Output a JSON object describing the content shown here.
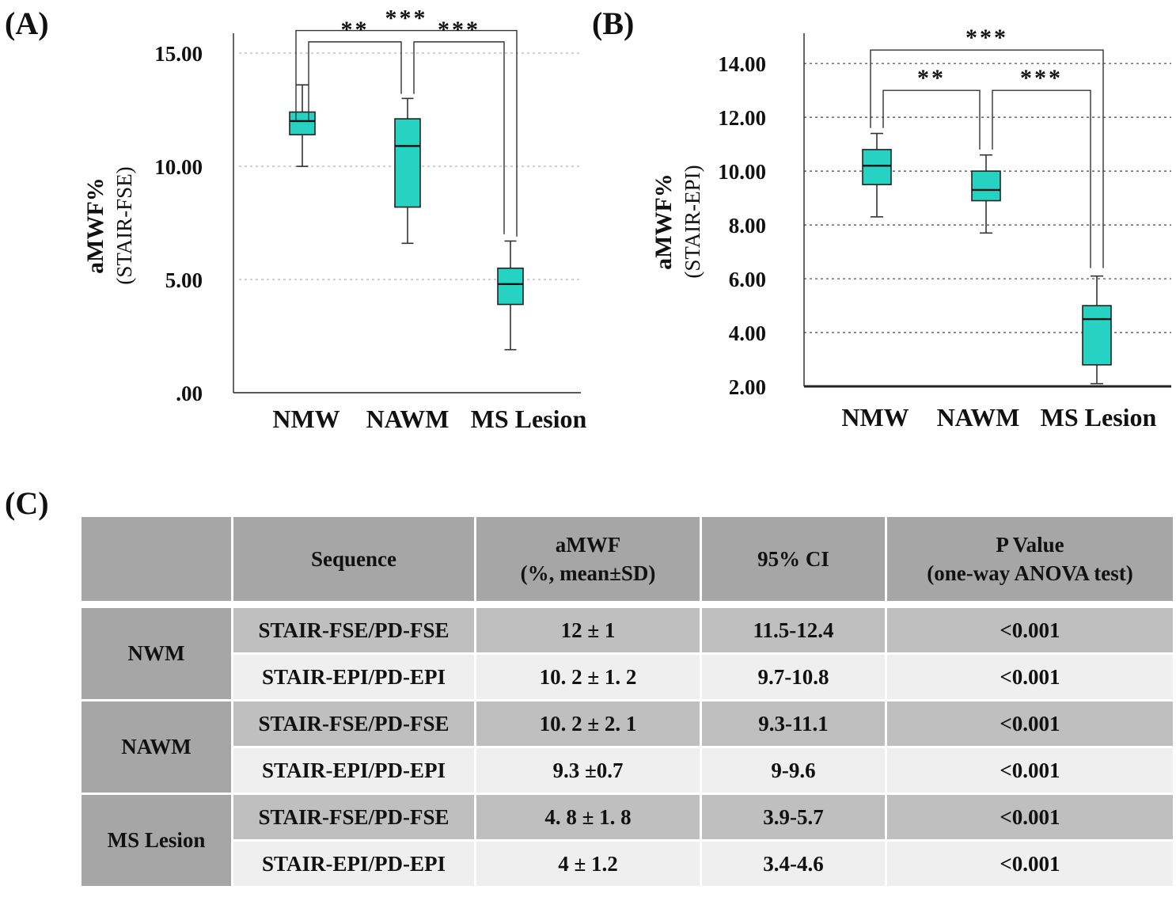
{
  "panels": {
    "a": "(A)",
    "b": "(B)",
    "c": "(C)"
  },
  "colors": {
    "box_fill": "#26d3c3",
    "grid": "#cfcfcf",
    "header_bg": "#a6a6a6",
    "row_dark": "#bfbfbf",
    "row_light": "#efefef"
  },
  "chart_data": [
    {
      "type": "box",
      "panel": "(A)",
      "ylabel": "aMWF%",
      "ylabel_sub": "(STAIR-FSE)",
      "categories": [
        "NMW",
        "NAWM",
        "MS Lesion"
      ],
      "yticks": [
        ".00",
        "5.00",
        "10.00",
        "15.00"
      ],
      "ytick_values": [
        0,
        5,
        10,
        15
      ],
      "ylim": [
        0,
        16.3
      ],
      "grid": "dotted horizontal at 5, 10, 15",
      "boxes": [
        {
          "category": "NMW",
          "min": 10.0,
          "q1": 11.4,
          "median": 12.0,
          "q3": 12.4,
          "max": 13.6
        },
        {
          "category": "NAWM",
          "min": 6.6,
          "q1": 8.2,
          "median": 10.9,
          "q3": 12.1,
          "max": 13.0
        },
        {
          "category": "MS Lesion",
          "min": 1.9,
          "q1": 3.9,
          "median": 4.8,
          "q3": 5.5,
          "max": 6.7
        }
      ],
      "comparisons": [
        {
          "from": "NMW",
          "to": "MS Lesion",
          "label": "***",
          "y": 16.0,
          "drop_from": 12.0,
          "drop_to": 6.9
        },
        {
          "from": "NMW",
          "to": "NAWM",
          "label": "**",
          "y": 15.5,
          "drop_from": 12.0,
          "drop_to": 13.2
        },
        {
          "from": "NAWM",
          "to": "MS Lesion",
          "label": "***",
          "y": 15.5,
          "drop_from": 13.2,
          "drop_to": 7.0
        }
      ]
    },
    {
      "type": "box",
      "panel": "(B)",
      "ylabel": "aMWF%",
      "ylabel_sub": "(STAIR-EPI)",
      "categories": [
        "NMW",
        "NAWM",
        "MS Lesion"
      ],
      "yticks": [
        "2.00",
        "4.00",
        "6.00",
        "8.00",
        "10.00",
        "12.00",
        "14.00"
      ],
      "ytick_values": [
        2,
        4,
        6,
        8,
        10,
        12,
        14
      ],
      "ylim": [
        2,
        15.3
      ],
      "grid": "dotted horizontal at 4 to 14",
      "boxes": [
        {
          "category": "NMW",
          "min": 8.3,
          "q1": 9.5,
          "median": 10.2,
          "q3": 10.8,
          "max": 11.4
        },
        {
          "category": "NAWM",
          "min": 7.7,
          "q1": 8.9,
          "median": 9.3,
          "q3": 10.0,
          "max": 10.6
        },
        {
          "category": "MS Lesion",
          "min": 2.1,
          "q1": 2.8,
          "median": 4.5,
          "q3": 5.0,
          "max": 6.1
        }
      ],
      "comparisons": [
        {
          "from": "NMW",
          "to": "MS Lesion",
          "label": "***",
          "y": 14.5,
          "drop_from": 11.6,
          "drop_to": 6.4
        },
        {
          "from": "NMW",
          "to": "NAWM",
          "label": "**",
          "y": 13.0,
          "drop_from": 11.6,
          "drop_to": 10.8
        },
        {
          "from": "NAWM",
          "to": "MS Lesion",
          "label": "***",
          "y": 13.0,
          "drop_from": 10.8,
          "drop_to": 6.4
        }
      ]
    }
  ],
  "table": {
    "headers": [
      "",
      "Sequence",
      "aMWF\n(%, mean±SD)",
      "95% CI",
      "P Value\n(one-way ANOVA test)"
    ],
    "groups": [
      {
        "name": "NWM",
        "rows": [
          {
            "sequence": "STAIR-FSE/PD-FSE",
            "amwf": "12 ± 1",
            "ci": "11.5-12.4",
            "p": "<0.001"
          },
          {
            "sequence": "STAIR-EPI/PD-EPI",
            "amwf": "10. 2 ± 1. 2",
            "ci": "9.7-10.8",
            "p": "<0.001"
          }
        ]
      },
      {
        "name": "NAWM",
        "rows": [
          {
            "sequence": "STAIR-FSE/PD-FSE",
            "amwf": "10. 2 ± 2. 1",
            "ci": "9.3-11.1",
            "p": "<0.001"
          },
          {
            "sequence": "STAIR-EPI/PD-EPI",
            "amwf": "9.3 ±0.7",
            "ci": "9-9.6",
            "p": "<0.001"
          }
        ]
      },
      {
        "name": "MS Lesion",
        "rows": [
          {
            "sequence": "STAIR-FSE/PD-FSE",
            "amwf": "4. 8 ± 1. 8",
            "ci": "3.9-5.7",
            "p": "<0.001"
          },
          {
            "sequence": "STAIR-EPI/PD-EPI",
            "amwf": "4 ± 1.2",
            "ci": "3.4-4.6",
            "p": "<0.001"
          }
        ]
      }
    ]
  }
}
